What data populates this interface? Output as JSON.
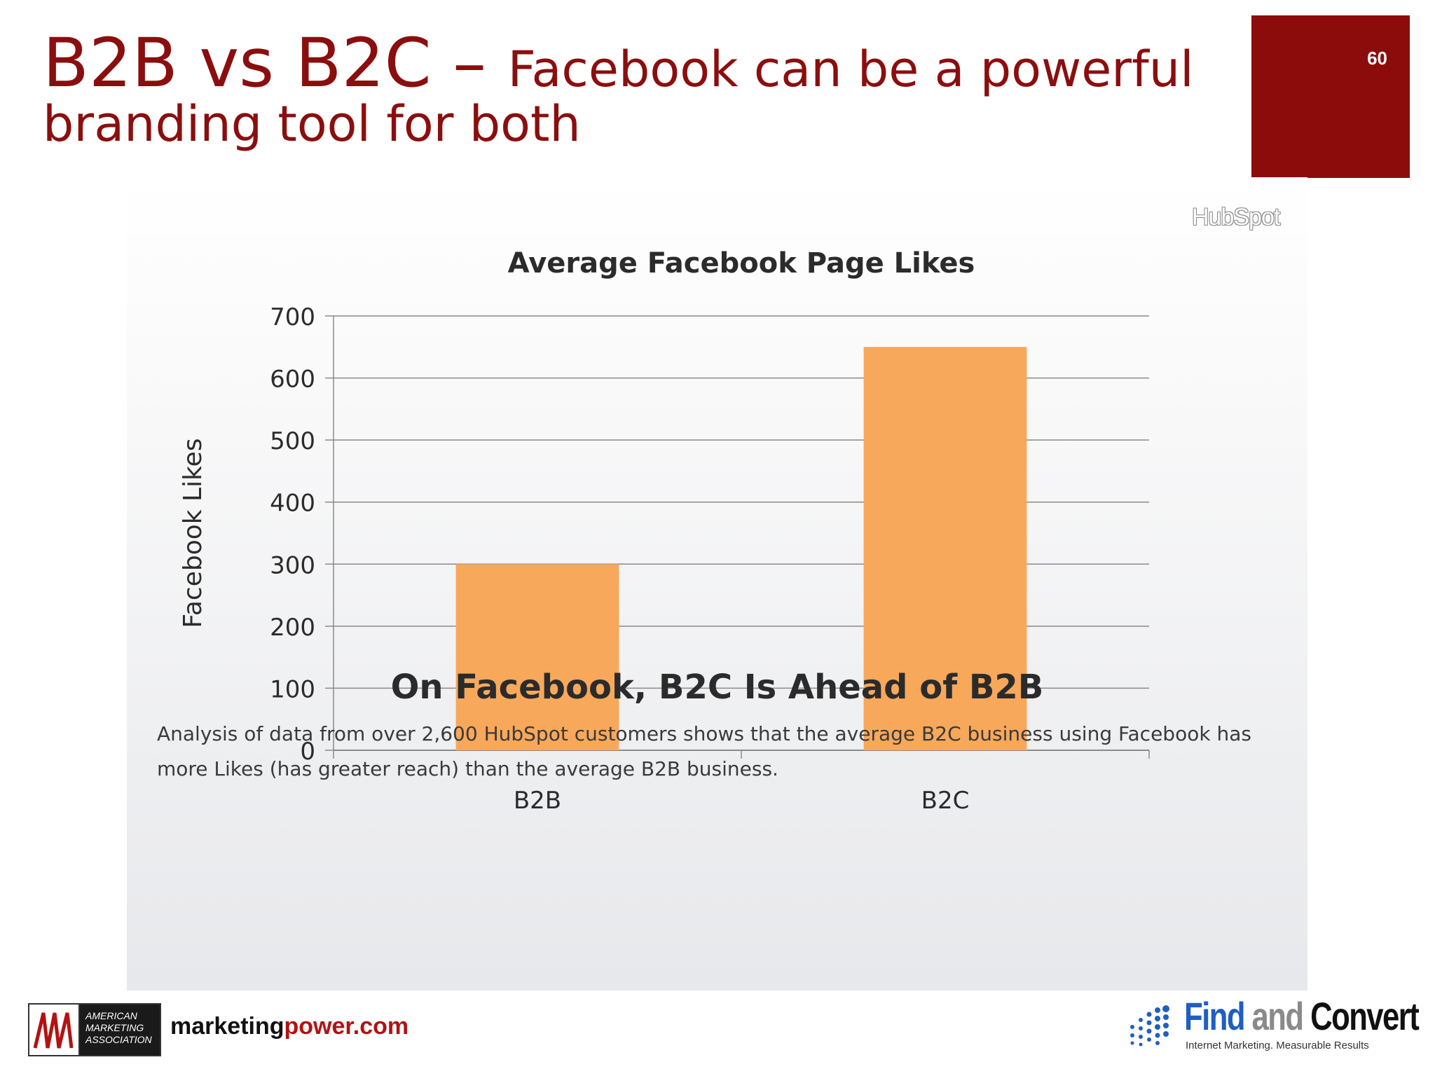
{
  "slide": {
    "title_main": "B2B vs B2C – ",
    "title_rest": "Facebook can be a powerful branding tool for both",
    "page_number": "60",
    "brand_color": "#8c0c0c"
  },
  "panel": {
    "hubspot_logo": "HubSpot",
    "subheading": "On Facebook, B2C Is Ahead of B2B",
    "description": "Analysis of data from over 2,600 HubSpot customers shows that the average B2C business using Facebook has more Likes (has greater reach) than the average B2B business."
  },
  "chart_data": {
    "type": "bar",
    "title": "Average Facebook Page Likes",
    "xlabel": "",
    "ylabel": "Facebook Likes",
    "categories": [
      "B2B",
      "B2C"
    ],
    "values": [
      300,
      650
    ],
    "ylim": [
      0,
      700
    ],
    "yticks": [
      0,
      100,
      200,
      300,
      400,
      500,
      600,
      700
    ],
    "grid": true,
    "bar_color": "#f7a85a"
  },
  "footer": {
    "ama_logo_text": [
      "AMERICAN",
      "MARKETING",
      "ASSOCIATION"
    ],
    "site_part1": "marketing",
    "site_part2": "power.com",
    "fc_find": "Find",
    "fc_and": "and",
    "fc_convert": "Convert",
    "fc_tagline": "Internet Marketing. Measurable Results"
  }
}
